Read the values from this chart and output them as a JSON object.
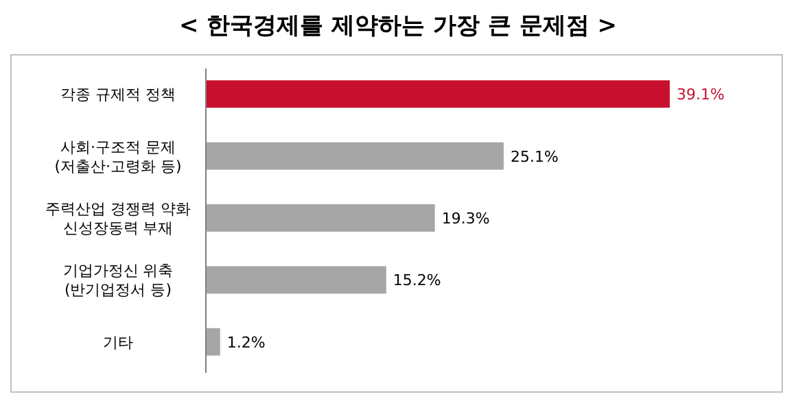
{
  "chart_data": {
    "type": "bar",
    "orientation": "horizontal",
    "title": "< 한국경제를 제약하는 가장 큰 문제점 >",
    "categories": [
      "각종 규제적 정책",
      "사회·구조적 문제\n(저출산·고령화 등)",
      "주력산업 경쟁력 약화\n신성장동력 부재",
      "기업가정신 위축\n(반기업정서 등)",
      "기타"
    ],
    "values": [
      39.1,
      25.1,
      19.3,
      15.2,
      1.2
    ],
    "value_labels": [
      "39.1%",
      "25.1%",
      "19.3%",
      "15.2%",
      "1.2%"
    ],
    "colors": [
      "#c8102e",
      "#a6a6a6",
      "#a6a6a6",
      "#a6a6a6",
      "#a6a6a6"
    ]
  }
}
